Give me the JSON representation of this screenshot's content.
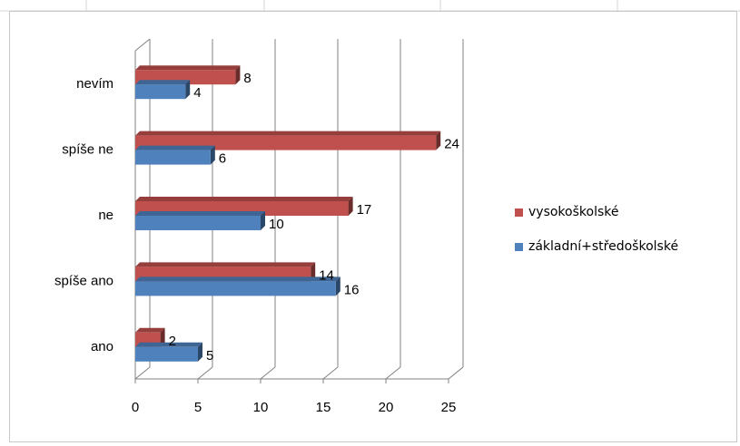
{
  "chart_data": {
    "type": "bar",
    "orientation": "horizontal",
    "categories": [
      "ano",
      "spíše ano",
      "ne",
      "spíše ne",
      "nevím"
    ],
    "series": [
      {
        "name": "vysokoškolské",
        "values": [
          2,
          14,
          17,
          24,
          8
        ],
        "color": "#c0504d"
      },
      {
        "name": "základní+středoškolské",
        "values": [
          5,
          16,
          10,
          6,
          4
        ],
        "color": "#4f81bd"
      }
    ],
    "x_ticks": [
      "0",
      "5",
      "10",
      "15",
      "20",
      "25"
    ],
    "xlim": [
      0,
      25
    ],
    "grid": true,
    "legend_position": "right",
    "title": "",
    "xlabel": "",
    "ylabel": ""
  },
  "colors": {
    "red": "#c0504d",
    "blue": "#4f81bd",
    "grid": "#808080"
  }
}
